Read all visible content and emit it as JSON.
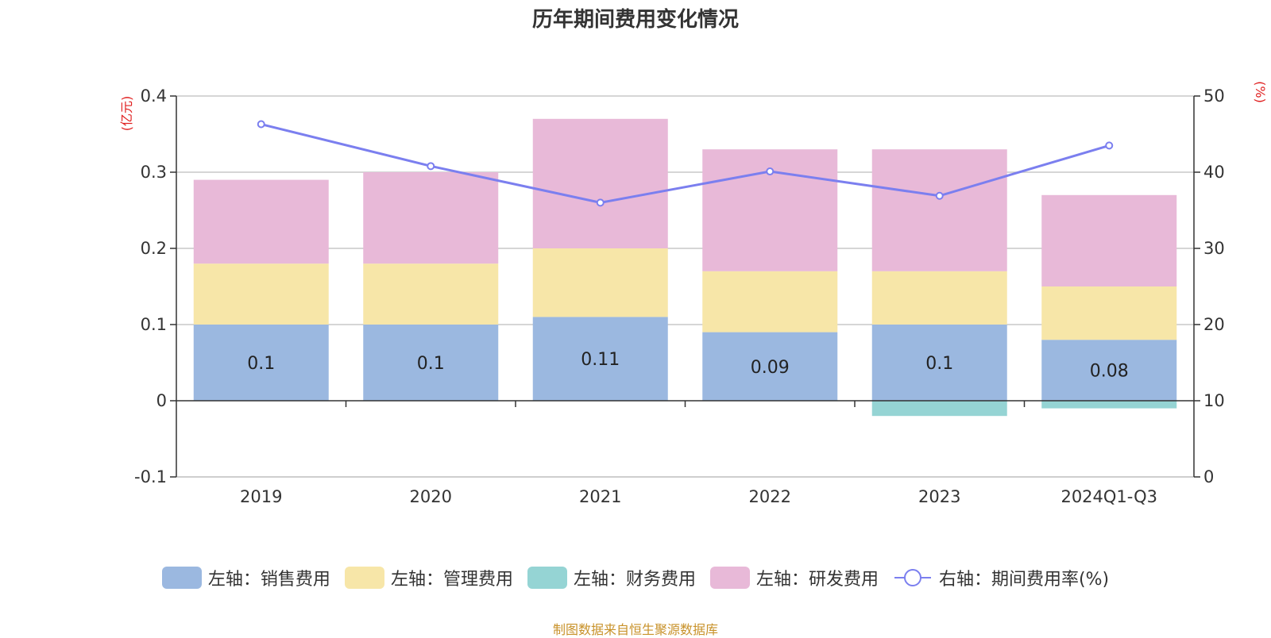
{
  "title": "历年期间费用变化情况",
  "source_note": "制图数据来自恒生聚源数据库",
  "colors": {
    "sales": "#9bb8e0",
    "admin": "#f7e6a8",
    "finance": "#95d4d4",
    "rd": "#e8b9d8",
    "rate_line": "#7b7fef",
    "unit_text": "#e02020",
    "source_text": "#c8922a"
  },
  "legend": [
    {
      "label": "左轴：销售费用",
      "type": "swatch",
      "color_key": "sales"
    },
    {
      "label": "左轴：管理费用",
      "type": "swatch",
      "color_key": "admin"
    },
    {
      "label": "左轴：财务费用",
      "type": "swatch",
      "color_key": "finance"
    },
    {
      "label": "左轴：研发费用",
      "type": "swatch",
      "color_key": "rd"
    },
    {
      "label": "右轴：期间费用率(%)",
      "type": "line-marker",
      "color_key": "rate_line"
    }
  ],
  "chart_data": {
    "type": "bar",
    "stacked": true,
    "title": "历年期间费用变化情况",
    "categories": [
      "2019",
      "2020",
      "2021",
      "2022",
      "2023",
      "2024Q1-Q3"
    ],
    "series": [
      {
        "name": "左轴：销售费用",
        "axis": "left",
        "values": [
          0.1,
          0.1,
          0.11,
          0.09,
          0.1,
          0.08
        ],
        "show_labels": true
      },
      {
        "name": "左轴：管理费用",
        "axis": "left",
        "values": [
          0.08,
          0.08,
          0.09,
          0.08,
          0.07,
          0.07
        ]
      },
      {
        "name": "左轴：财务费用",
        "axis": "left",
        "values": [
          0,
          0,
          0,
          0,
          -0.02,
          -0.01
        ]
      },
      {
        "name": "左轴：研发费用",
        "axis": "left",
        "values": [
          0.11,
          0.12,
          0.17,
          0.16,
          0.16,
          0.12
        ]
      },
      {
        "name": "右轴：期间费用率(%)",
        "axis": "right",
        "type": "line",
        "values": [
          46.3,
          40.8,
          36.0,
          40.1,
          36.9,
          43.5
        ]
      }
    ],
    "left_axis": {
      "unit": "(亿元)",
      "min": -0.1,
      "max": 0.4,
      "ticks": [
        -0.1,
        0,
        0.1,
        0.2,
        0.3,
        0.4
      ]
    },
    "right_axis": {
      "unit": "(%)",
      "min": 0,
      "max": 50,
      "ticks": [
        0,
        10,
        20,
        30,
        40,
        50
      ]
    },
    "grid": true,
    "legend_position": "bottom"
  }
}
